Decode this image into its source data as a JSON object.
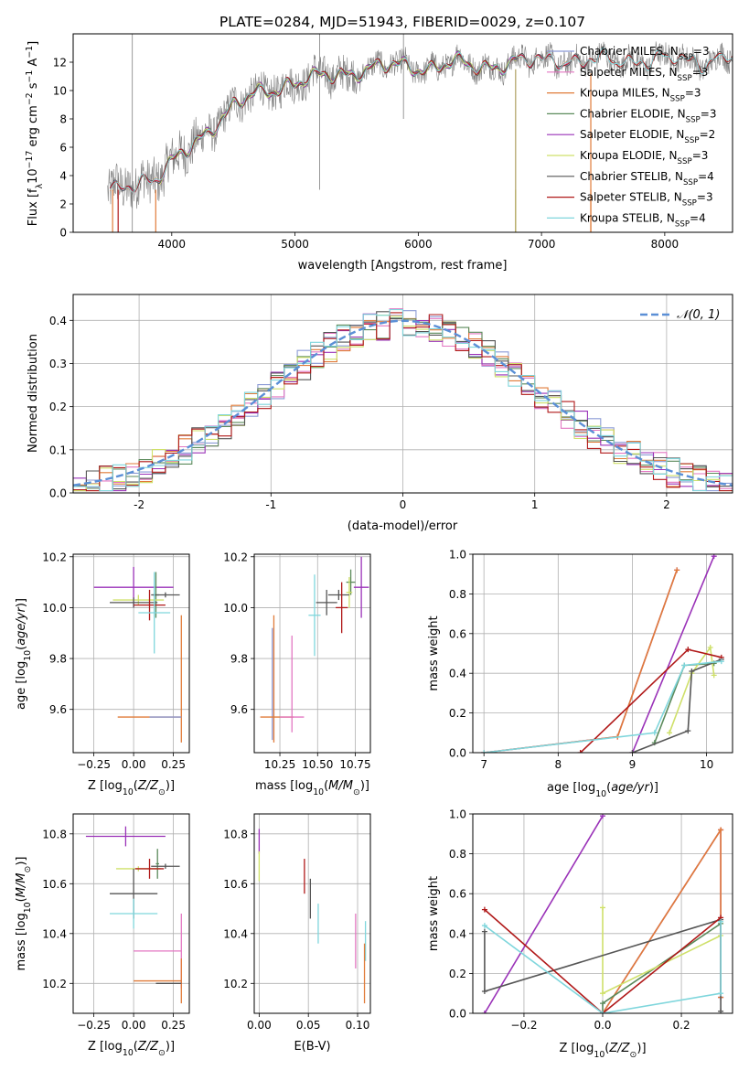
{
  "figure_title": "PLATE=0284, MJD=51943, FIBERID=0029, z=0.107",
  "colors": {
    "Chabrier MILES": "#8c9bd6",
    "Salpeter MILES": "#e377c2",
    "Kroupa MILES": "#e07b39",
    "Chabrier ELODIE": "#5b8a5b",
    "Salpeter ELODIE": "#9a32b8",
    "Kroupa ELODIE": "#cfe06a",
    "Chabrier STELIB": "#555555",
    "Salpeter STELIB": "#b01818",
    "Kroupa STELIB": "#7fd6dc",
    "normal": "#5b8fd6",
    "grid": "#b0b0b0",
    "data_spectrum": "#808080"
  },
  "chart_data": [
    {
      "id": "spectrum",
      "type": "line",
      "xlabel": "wavelength [Angstrom, rest frame]",
      "ylabel": "Flux [f_λ 10^-17 erg cm^-2 s^-1 A^-1]",
      "xlim": [
        3200,
        8550
      ],
      "ylim": [
        0,
        14
      ],
      "xticks": [
        4000,
        5000,
        6000,
        7000,
        8000
      ],
      "yticks": [
        0,
        2,
        4,
        6,
        8,
        10,
        12
      ],
      "grid": false,
      "legend_position": "right",
      "legend": [
        "Chabrier MILES, N_SSP=3",
        "Salpeter MILES, N_SSP=3",
        "Kroupa MILES, N_SSP=3",
        "Chabrier ELODIE, N_SSP=3",
        "Salpeter ELODIE, N_SSP=2",
        "Kroupa ELODIE, N_SSP=3",
        "Chabrier STELIB, N_SSP=4",
        "Salpeter STELIB, N_SSP=3",
        "Kroupa STELIB, N_SSP=4"
      ],
      "continuum_anchors": {
        "x": [
          3500,
          3700,
          3900,
          4100,
          4300,
          4500,
          4700,
          4900,
          5100,
          5300,
          5500,
          5700,
          5900,
          6100,
          6300,
          6500,
          6700,
          6900,
          7100,
          7300,
          7500,
          7700,
          7900,
          8100,
          8300,
          8500
        ],
        "y": [
          2.8,
          3.6,
          3.9,
          5.6,
          7.3,
          8.8,
          9.8,
          10.4,
          10.7,
          11.1,
          11.4,
          11.6,
          11.8,
          11.6,
          11.9,
          11.7,
          11.9,
          12.0,
          12.3,
          12.0,
          12.1,
          12.2,
          12.1,
          12.2,
          12.1,
          12.3
        ]
      },
      "models": [
        "Chabrier MILES",
        "Salpeter MILES",
        "Kroupa MILES",
        "Chabrier ELODIE",
        "Salpeter ELODIE",
        "Kroupa ELODIE",
        "Chabrier STELIB",
        "Salpeter STELIB",
        "Kroupa STELIB"
      ],
      "model_ranges": {
        "Chabrier MILES": [
          3500,
          7400
        ],
        "Salpeter MILES": [
          3500,
          7400
        ],
        "Kroupa MILES": [
          3500,
          7400
        ],
        "Chabrier ELODIE": [
          3900,
          6800
        ],
        "Salpeter ELODIE": [
          3900,
          6800
        ],
        "Kroupa ELODIE": [
          3900,
          6800
        ],
        "Chabrier STELIB": [
          3500,
          8550
        ],
        "Salpeter STELIB": [
          3500,
          8550
        ],
        "Kroupa STELIB": [
          3500,
          8550
        ]
      }
    },
    {
      "id": "residuals",
      "type": "histogram",
      "xlabel": "(data-model)/error",
      "ylabel": "Normed distribution",
      "xlim": [
        -2.5,
        2.5
      ],
      "ylim": [
        0,
        0.46
      ],
      "xticks": [
        -2,
        -1,
        0,
        1,
        2
      ],
      "yticks": [
        0.0,
        0.1,
        0.2,
        0.3,
        0.4
      ],
      "grid": true,
      "legend_position": "top-right",
      "legend": [
        "𝒩(0, 1)"
      ],
      "bin_width": 0.1
    },
    {
      "id": "age_vs_Z",
      "type": "errorbar",
      "xlabel": "Z [log10(Z/Z⊙)]",
      "ylabel": "age [log10(age/yr)]",
      "xlim": [
        -0.38,
        0.35
      ],
      "ylim": [
        9.43,
        10.21
      ],
      "xticks": [
        -0.25,
        0.0,
        0.25
      ],
      "xticklabels": [
        "−0.25",
        "0.00",
        "0.25"
      ],
      "yticks": [
        9.6,
        9.8,
        10.0,
        10.2
      ],
      "grid": true,
      "points": [
        {
          "model": "Salpeter ELODIE",
          "x": 0.0,
          "xerr": 0.25,
          "y": 10.08,
          "yerr": 0.08
        },
        {
          "model": "Chabrier ELODIE",
          "x": 0.14,
          "xerr": 0.02,
          "y": 10.05,
          "yerr": 0.09
        },
        {
          "model": "Chabrier STELIB",
          "x": 0.2,
          "xerr": 0.09,
          "y": 10.05,
          "yerr": 0.01
        },
        {
          "model": "Kroupa ELODIE",
          "x": 0.03,
          "xerr": 0.16,
          "y": 10.03,
          "yerr": 0.02
        },
        {
          "model": "Chabrier STELIB",
          "x": 0.0,
          "xerr": 0.15,
          "y": 10.02,
          "yerr": 0.02
        },
        {
          "model": "Salpeter STELIB",
          "x": 0.1,
          "xerr": 0.1,
          "y": 10.01,
          "yerr": 0.06
        },
        {
          "model": "Kroupa STELIB",
          "x": 0.13,
          "xerr": 0.1,
          "y": 9.98,
          "yerr": 0.16
        },
        {
          "model": "Kroupa MILES",
          "x": 0.3,
          "xerr": 0.0,
          "y": 9.72,
          "yerr": 0.25
        },
        {
          "model": "Kroupa MILES",
          "x": 0.1,
          "xerr": 0.2,
          "y": 9.57,
          "yerr": 0.0
        },
        {
          "model": "Chabrier MILES",
          "x": 0.2,
          "xerr": 0.1,
          "y": 9.57,
          "yerr": 0.0
        }
      ]
    },
    {
      "id": "age_vs_mass",
      "type": "errorbar",
      "xlabel": "mass [log10(M/M⊙)]",
      "xlim": [
        10.08,
        10.85
      ],
      "ylim": [
        9.43,
        10.21
      ],
      "xticks": [
        10.25,
        10.5,
        10.75
      ],
      "xticklabels": [
        "10.25",
        "10.50",
        "10.75"
      ],
      "yticks": [
        9.6,
        9.8,
        10.0,
        10.2
      ],
      "grid": true,
      "points": [
        {
          "model": "Salpeter ELODIE",
          "x": 10.79,
          "xerr": 0.05,
          "y": 10.08,
          "yerr": 0.12
        },
        {
          "model": "Chabrier ELODIE",
          "x": 10.72,
          "xerr": 0.03,
          "y": 10.1,
          "yerr": 0.05
        },
        {
          "model": "Kroupa ELODIE",
          "x": 10.71,
          "xerr": 0.02,
          "y": 10.06,
          "yerr": 0.06
        },
        {
          "model": "Chabrier STELIB",
          "x": 10.64,
          "xerr": 0.07,
          "y": 10.05,
          "yerr": 0.02
        },
        {
          "model": "Chabrier STELIB",
          "x": 10.56,
          "xerr": 0.07,
          "y": 10.02,
          "yerr": 0.05
        },
        {
          "model": "Salpeter STELIB",
          "x": 10.66,
          "xerr": 0.04,
          "y": 10.0,
          "yerr": 0.1
        },
        {
          "model": "Kroupa STELIB",
          "x": 10.48,
          "xerr": 0.04,
          "y": 9.97,
          "yerr": 0.16
        },
        {
          "model": "Kroupa MILES",
          "x": 10.21,
          "xerr": 0.0,
          "y": 9.72,
          "yerr": 0.25
        },
        {
          "model": "Chabrier MILES",
          "x": 10.2,
          "xerr": 0.0,
          "y": 9.7,
          "yerr": 0.22
        },
        {
          "model": "Salpeter MILES",
          "x": 10.33,
          "xerr": 0.0,
          "y": 9.7,
          "yerr": 0.19
        },
        {
          "model": "Kroupa MILES",
          "x": 10.23,
          "xerr": 0.11,
          "y": 9.57,
          "yerr": 0.0
        },
        {
          "model": "Salpeter MILES",
          "x": 10.33,
          "xerr": 0.08,
          "y": 9.57,
          "yerr": 0.0
        }
      ]
    },
    {
      "id": "weight_vs_age",
      "type": "line",
      "xlabel": "age [log10(age/yr)]",
      "ylabel": "mass weight",
      "xlim": [
        6.85,
        10.35
      ],
      "ylim": [
        0,
        1
      ],
      "xticks": [
        7,
        8,
        9,
        10
      ],
      "yticks": [
        0.0,
        0.2,
        0.4,
        0.6,
        0.8,
        1.0
      ],
      "grid": true,
      "series": [
        {
          "model": "Chabrier MILES",
          "x": [
            7.0,
            8.8,
            9.6
          ],
          "y": [
            0.0,
            0.08,
            0.92
          ]
        },
        {
          "model": "Salpeter MILES",
          "x": [
            7.0,
            8.8,
            9.6
          ],
          "y": [
            0.0,
            0.08,
            0.92
          ]
        },
        {
          "model": "Kroupa MILES",
          "x": [
            7.0,
            8.8,
            9.6
          ],
          "y": [
            0.0,
            0.08,
            0.92
          ]
        },
        {
          "model": "Chabrier ELODIE",
          "x": [
            9.3,
            9.7,
            10.1
          ],
          "y": [
            0.05,
            0.44,
            0.45
          ]
        },
        {
          "model": "Salpeter ELODIE",
          "x": [
            9.0,
            10.1
          ],
          "y": [
            0.0,
            0.99
          ]
        },
        {
          "model": "Kroupa ELODIE",
          "x": [
            9.5,
            9.8,
            10.05,
            10.1
          ],
          "y": [
            0.1,
            0.4,
            0.53,
            0.39
          ]
        },
        {
          "model": "Chabrier STELIB",
          "x": [
            9.0,
            9.75,
            9.8,
            10.2
          ],
          "y": [
            0.0,
            0.11,
            0.41,
            0.47
          ]
        },
        {
          "model": "Salpeter STELIB",
          "x": [
            8.3,
            9.75,
            10.2
          ],
          "y": [
            0.0,
            0.52,
            0.48
          ]
        },
        {
          "model": "Kroupa STELIB",
          "x": [
            7.0,
            9.3,
            9.7,
            10.2
          ],
          "y": [
            0.0,
            0.1,
            0.44,
            0.46
          ]
        }
      ]
    },
    {
      "id": "mass_vs_Z",
      "type": "errorbar",
      "xlabel": "Z [log10(Z/Z⊙)]",
      "ylabel": "mass [log10(M/M⊙)]",
      "xlim": [
        -0.38,
        0.35
      ],
      "ylim": [
        10.08,
        10.88
      ],
      "xticks": [
        -0.25,
        0.0,
        0.25
      ],
      "xticklabels": [
        "−0.25",
        "0.00",
        "0.25"
      ],
      "yticks": [
        10.2,
        10.4,
        10.6,
        10.8
      ],
      "grid": true,
      "points": [
        {
          "model": "Salpeter ELODIE",
          "x": -0.05,
          "xerr": 0.25,
          "y": 10.79,
          "yerr": 0.04
        },
        {
          "model": "Chabrier ELODIE",
          "x": 0.15,
          "xerr": 0.01,
          "y": 10.68,
          "yerr": 0.06
        },
        {
          "model": "Chabrier STELIB",
          "x": 0.2,
          "xerr": 0.09,
          "y": 10.67,
          "yerr": 0.01
        },
        {
          "model": "Kroupa ELODIE",
          "x": 0.03,
          "xerr": 0.14,
          "y": 10.66,
          "yerr": 0.01
        },
        {
          "model": "Salpeter STELIB",
          "x": 0.1,
          "xerr": 0.09,
          "y": 10.66,
          "yerr": 0.04
        },
        {
          "model": "Chabrier STELIB",
          "x": 0.0,
          "xerr": 0.15,
          "y": 10.56,
          "yerr": 0.1
        },
        {
          "model": "Kroupa STELIB",
          "x": 0.0,
          "xerr": 0.15,
          "y": 10.48,
          "yerr": 0.06
        },
        {
          "model": "Salpeter MILES",
          "x": 0.3,
          "xerr": 0.0,
          "y": 10.33,
          "yerr": 0.15
        },
        {
          "model": "Salpeter MILES",
          "x": 0.15,
          "xerr": 0.15,
          "y": 10.33,
          "yerr": 0.0
        },
        {
          "model": "Kroupa MILES",
          "x": 0.3,
          "xerr": 0.0,
          "y": 10.21,
          "yerr": 0.09
        },
        {
          "model": "Kroupa MILES",
          "x": 0.15,
          "xerr": 0.15,
          "y": 10.21,
          "yerr": 0.0
        },
        {
          "model": "Chabrier STELIB",
          "x": 0.22,
          "xerr": 0.08,
          "y": 10.2,
          "yerr": 0.0
        }
      ]
    },
    {
      "id": "mass_vs_ebv",
      "type": "errorbar",
      "xlabel": "E(B-V)",
      "xlim": [
        -0.005,
        0.113
      ],
      "ylim": [
        10.08,
        10.88
      ],
      "xticks": [
        0.0,
        0.05,
        0.1
      ],
      "xticklabels": [
        "0.00",
        "0.05",
        "0.10"
      ],
      "yticks": [
        10.2,
        10.4,
        10.6,
        10.8
      ],
      "grid": true,
      "points": [
        {
          "model": "Salpeter ELODIE",
          "x": 0.0,
          "xerr": 0.0,
          "y": 10.77,
          "yerr": 0.05
        },
        {
          "model": "Kroupa ELODIE",
          "x": 0.0,
          "xerr": 0.0,
          "y": 10.67,
          "yerr": 0.06
        },
        {
          "model": "Salpeter STELIB",
          "x": 0.046,
          "xerr": 0.0,
          "y": 10.63,
          "yerr": 0.07
        },
        {
          "model": "Chabrier STELIB",
          "x": 0.052,
          "xerr": 0.0,
          "y": 10.54,
          "yerr": 0.08
        },
        {
          "model": "Kroupa STELIB",
          "x": 0.06,
          "xerr": 0.0,
          "y": 10.44,
          "yerr": 0.08
        },
        {
          "model": "Salpeter MILES",
          "x": 0.098,
          "xerr": 0.0,
          "y": 10.37,
          "yerr": 0.11
        },
        {
          "model": "Kroupa STELIB",
          "x": 0.108,
          "xerr": 0.0,
          "y": 10.37,
          "yerr": 0.08
        },
        {
          "model": "Kroupa MILES",
          "x": 0.107,
          "xerr": 0.0,
          "y": 10.24,
          "yerr": 0.12
        }
      ]
    },
    {
      "id": "weight_vs_Z",
      "type": "line",
      "xlabel": "Z [log10(Z/Z⊙)]",
      "ylabel": "mass weight",
      "xlim": [
        -0.33,
        0.33
      ],
      "ylim": [
        0,
        1
      ],
      "xticks": [
        -0.2,
        0.0,
        0.2
      ],
      "xticklabels": [
        "−0.2",
        "0.0",
        "0.2"
      ],
      "yticks": [
        0.0,
        0.2,
        0.4,
        0.6,
        0.8,
        1.0
      ],
      "grid": true,
      "series": [
        {
          "model": "Chabrier MILES",
          "x": [
            0.0,
            0.3,
            0.3
          ],
          "y": [
            0.0,
            0.92,
            0.08
          ]
        },
        {
          "model": "Salpeter MILES",
          "x": [
            0.0,
            0.3,
            0.3
          ],
          "y": [
            0.0,
            0.92,
            0.08
          ]
        },
        {
          "model": "Kroupa MILES",
          "x": [
            0.0,
            0.3,
            0.3
          ],
          "y": [
            0.0,
            0.92,
            0.08
          ]
        },
        {
          "model": "Chabrier ELODIE",
          "x": [
            0.0,
            0.0,
            0.3
          ],
          "y": [
            0.0,
            0.05,
            0.45
          ]
        },
        {
          "model": "Salpeter ELODIE",
          "x": [
            -0.3,
            0.0
          ],
          "y": [
            0.0,
            0.99
          ]
        },
        {
          "model": "Kroupa ELODIE",
          "x": [
            0.0,
            0.0,
            0.3
          ],
          "y": [
            0.53,
            0.1,
            0.39
          ]
        },
        {
          "model": "Chabrier STELIB",
          "x": [
            -0.3,
            -0.3,
            0.3,
            0.3
          ],
          "y": [
            0.41,
            0.11,
            0.47,
            0.01
          ]
        },
        {
          "model": "Salpeter STELIB",
          "x": [
            -0.3,
            0.0,
            0.3
          ],
          "y": [
            0.52,
            0.0,
            0.48
          ]
        },
        {
          "model": "Kroupa STELIB",
          "x": [
            -0.3,
            0.0,
            0.3,
            0.3
          ],
          "y": [
            0.44,
            0.0,
            0.1,
            0.46
          ]
        }
      ]
    }
  ]
}
